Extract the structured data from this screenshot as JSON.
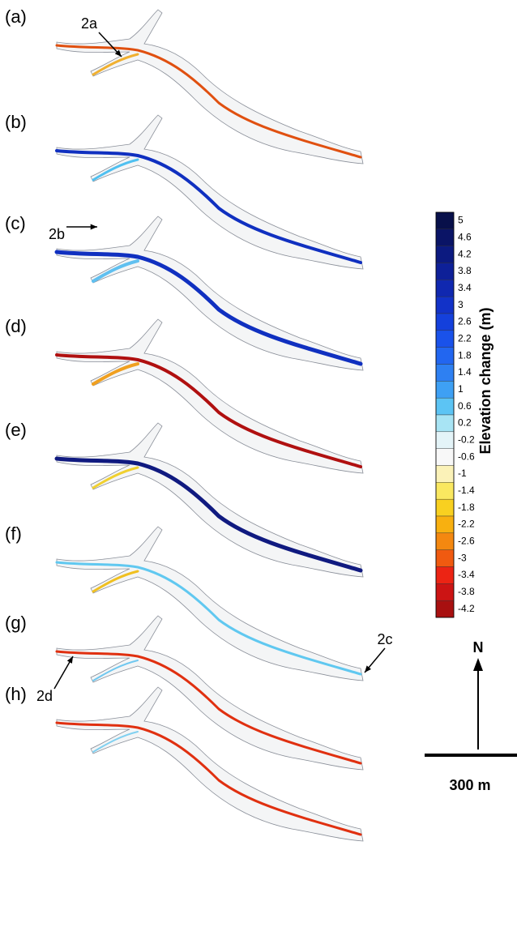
{
  "panels": [
    {
      "label": "(a)"
    },
    {
      "label": "(b)"
    },
    {
      "label": "(c)"
    },
    {
      "label": "(d)"
    },
    {
      "label": "(e)"
    },
    {
      "label": "(f)"
    },
    {
      "label": "(g)"
    },
    {
      "label": "(h)"
    }
  ],
  "annotations": [
    {
      "text": "2a"
    },
    {
      "text": "2b"
    },
    {
      "text": "2c"
    },
    {
      "text": "2d"
    }
  ],
  "colorbar": {
    "title": "Elevation change (m)",
    "lim": [
      -4.4,
      5.2
    ],
    "ticks": [
      5,
      4.6,
      4.2,
      3.8,
      3.4,
      3,
      2.6,
      2.2,
      1.8,
      1.4,
      1,
      0.6,
      0.2,
      -0.2,
      -0.6,
      -1,
      -1.4,
      -1.8,
      -2.2,
      -2.6,
      -3,
      -3.4,
      -3.8,
      -4.2
    ],
    "colors": [
      "#08104a",
      "#0a1466",
      "#0c1a80",
      "#0e2098",
      "#1028b0",
      "#1232c8",
      "#1440dc",
      "#1a52ea",
      "#2266f0",
      "#2e80f2",
      "#3ea0f4",
      "#5cc4f4",
      "#a8e4f4",
      "#e4f4f8",
      "#f8f8f8",
      "#fbf2b8",
      "#fae860",
      "#f8d020",
      "#f8b010",
      "#f48810",
      "#f05a10",
      "#ec2414",
      "#cc1414",
      "#a81010"
    ]
  },
  "north": "N",
  "scale_bar": "300 m"
}
